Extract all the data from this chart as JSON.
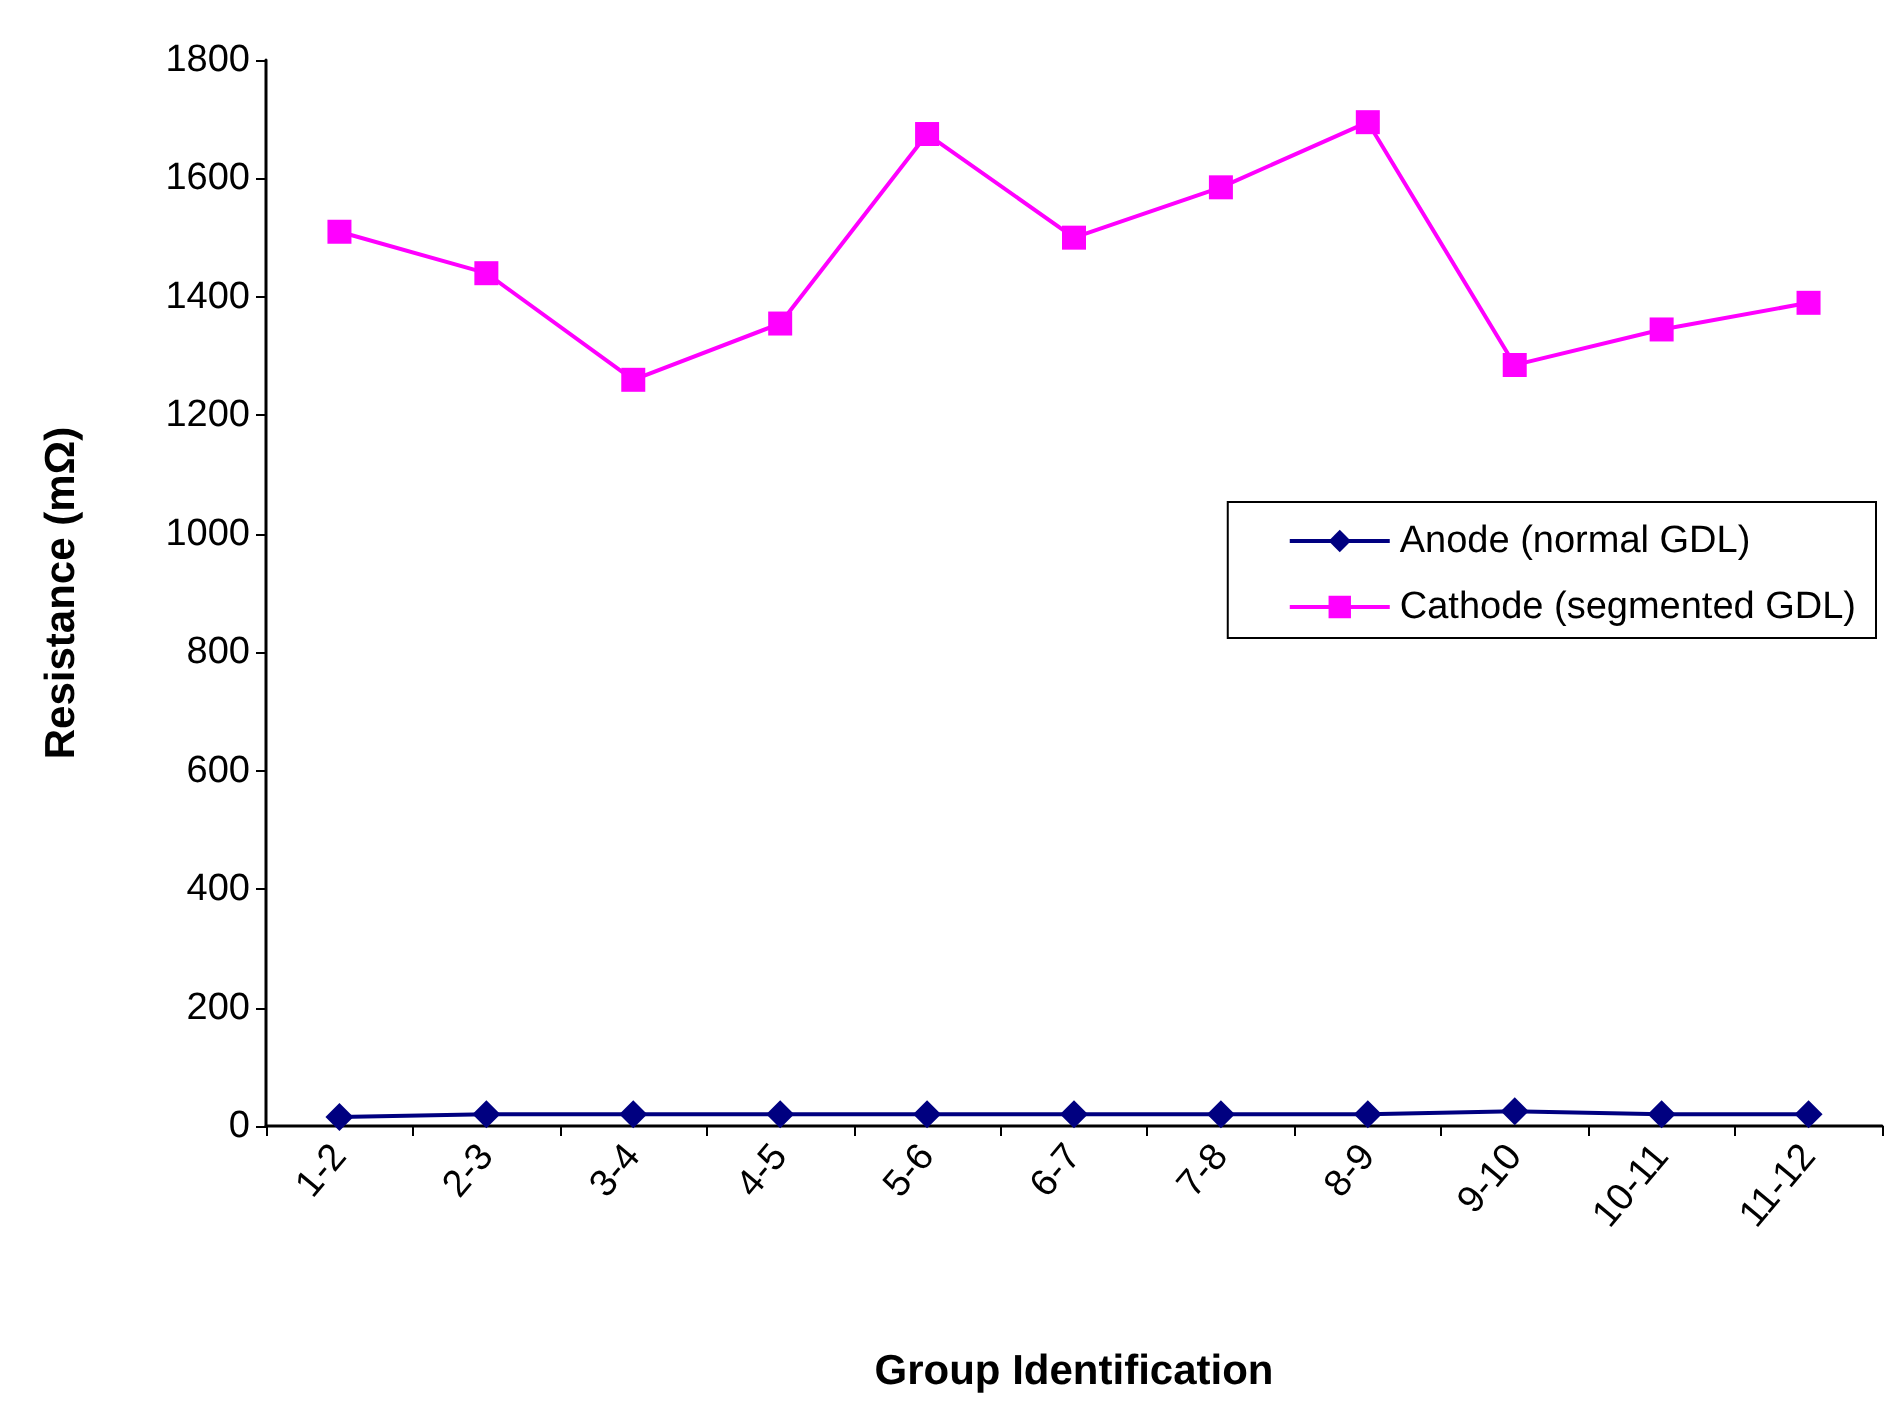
{
  "chart_data": {
    "type": "line",
    "xlabel": "Group Identification",
    "ylabel": "Resistance (mΩ)",
    "categories": [
      "1-2",
      "2-3",
      "3-4",
      "4-5",
      "5-6",
      "6-7",
      "7-8",
      "8-9",
      "9-10",
      "10-11",
      "11-12"
    ],
    "series": [
      {
        "name": "Anode (normal GDL)",
        "color": "#000080",
        "marker": "diamond",
        "values": [
          15,
          20,
          20,
          20,
          20,
          20,
          20,
          20,
          25,
          20,
          20
        ]
      },
      {
        "name": "Cathode (segmented GDL)",
        "color": "#ff00ff",
        "marker": "square",
        "values": [
          1510,
          1440,
          1260,
          1355,
          1675,
          1500,
          1585,
          1695,
          1285,
          1345,
          1390
        ]
      }
    ],
    "ylim": [
      0,
      1800
    ],
    "yticks": [
      0,
      200,
      400,
      600,
      800,
      1000,
      1200,
      1400,
      1600,
      1800
    ],
    "grid": false,
    "legend": "right",
    "line_style": "solid"
  }
}
